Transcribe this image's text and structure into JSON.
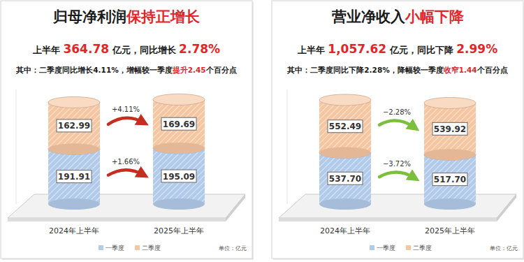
{
  "chart_data": [
    {
      "type": "bar",
      "stacked": true,
      "data_labels": true,
      "tick_labels": false,
      "title": [
        "归母净利润",
        "保持正增长"
      ],
      "subtitle": [
        "上半年 ",
        "364.78",
        " 亿元，同比增长 ",
        "2.78%"
      ],
      "note": [
        "其中：二季度同比增长4.11%，增幅较一季度",
        "提升2.45",
        "个百分点"
      ],
      "ylabel": "单位：亿元",
      "categories": [
        "2024年上半年",
        "2025年上半年"
      ],
      "series": [
        {
          "name": "一季度",
          "color": "#b3cbea",
          "values": [
            191.91,
            195.09
          ],
          "value_labels": [
            "191.91",
            "195.09"
          ]
        },
        {
          "name": "二季度",
          "color": "#f5c6a2",
          "values": [
            162.99,
            169.69
          ],
          "value_labels": [
            "162.99",
            "169.69"
          ]
        }
      ],
      "annotations": [
        "+1.66%",
        "+4.11%"
      ],
      "ylim": [
        0,
        400
      ],
      "yticks": []
    },
    {
      "type": "bar",
      "stacked": true,
      "data_labels": true,
      "tick_labels": false,
      "title": [
        "营业净收入",
        "小幅下降"
      ],
      "subtitle": [
        "上半年 ",
        "1,057.62",
        " 亿元，同比下降 ",
        "2.99%"
      ],
      "note": [
        "其中：二季度同比下降2.28%，降幅较一季度",
        "收窄1.44",
        "个百分点"
      ],
      "ylabel": "单位：亿元",
      "categories": [
        "2024年上半年",
        "2025年上半年"
      ],
      "series": [
        {
          "name": "一季度",
          "color": "#b3cbea",
          "values": [
            537.7,
            517.7
          ],
          "value_labels": [
            "537.70",
            "517.70"
          ]
        },
        {
          "name": "二季度",
          "color": "#f5c6a2",
          "values": [
            552.49,
            539.92
          ],
          "value_labels": [
            "552.49",
            "539.92"
          ]
        }
      ],
      "annotations": [
        "−3.72%",
        "−2.28%"
      ],
      "ylim": [
        0,
        1200
      ],
      "yticks": []
    }
  ]
}
